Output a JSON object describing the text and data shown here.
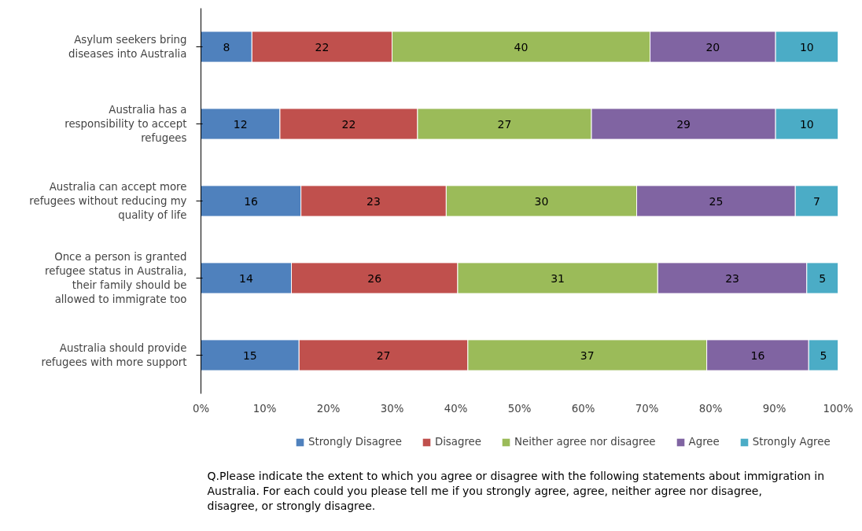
{
  "chart_data": {
    "type": "bar",
    "orientation": "horizontal",
    "stacked": true,
    "categories": [
      "Asylum seekers bring diseases into Australia",
      "Australia has a responsibility to accept refugees",
      "Australia can accept more refugees without reducing my quality of life",
      "Once a person is granted refugee status in Australia, their family should be allowed to immigrate too",
      "Australia should provide refugees with more support"
    ],
    "series": [
      {
        "name": "Strongly Disagree",
        "color": "#4f81bd",
        "values": [
          8,
          12.4,
          15.7,
          14.2,
          15.4
        ],
        "value_labels": [
          "8",
          "12",
          "16",
          "14",
          "15"
        ]
      },
      {
        "name": "Disagree",
        "color": "#c0504d",
        "values": [
          22,
          21.6,
          22.8,
          26.1,
          26.5
        ],
        "value_labels": [
          "22",
          "22",
          "23",
          "26",
          "27"
        ]
      },
      {
        "name": "Neither agree nor disagree",
        "color": "#9bbb59",
        "values": [
          40.5,
          27.3,
          29.9,
          31.4,
          37.5
        ],
        "value_labels": [
          "40",
          "27",
          "30",
          "31",
          "37"
        ]
      },
      {
        "name": "Agree",
        "color": "#8064a2",
        "values": [
          19.7,
          28.9,
          24.9,
          23.4,
          16
        ],
        "value_labels": [
          "20",
          "29",
          "25",
          "23",
          "16"
        ]
      },
      {
        "name": "Strongly Agree",
        "color": "#4bacc6",
        "values": [
          9.8,
          9.8,
          6.7,
          4.9,
          4.6
        ],
        "value_labels": [
          "10",
          "10",
          "7",
          "5",
          "5"
        ]
      }
    ],
    "xlim": [
      0,
      100
    ],
    "xticks": [
      {
        "value": 0,
        "label": "0%"
      },
      {
        "value": 10,
        "label": "10%"
      },
      {
        "value": 20,
        "label": "20%"
      },
      {
        "value": 30,
        "label": "30%"
      },
      {
        "value": 40,
        "label": "40%"
      },
      {
        "value": 50,
        "label": "50%"
      },
      {
        "value": 60,
        "label": "60%"
      },
      {
        "value": 70,
        "label": "70%"
      },
      {
        "value": 80,
        "label": "80%"
      },
      {
        "value": 90,
        "label": "90%"
      },
      {
        "value": 100,
        "label": "100%"
      }
    ],
    "grid": false,
    "legend": "bottom",
    "annotations": [
      "Q.Please indicate the extent to which you agree or disagree with the following statements about immigration in Australia. For each could you please tell me if you strongly agree, agree, neither agree nor disagree, disagree, or strongly disagree."
    ]
  }
}
